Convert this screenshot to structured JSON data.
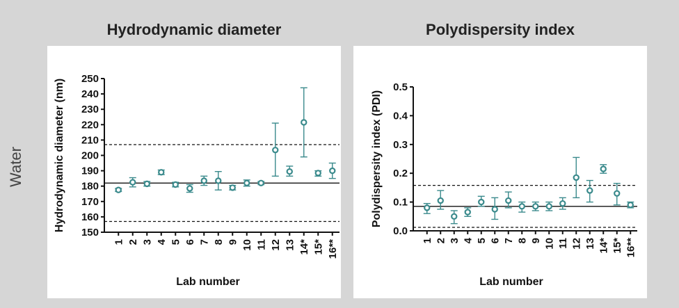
{
  "row_label": "Water",
  "chart_data": [
    {
      "type": "scatter",
      "title": "Hydrodynamic diameter",
      "xlabel": "Lab number",
      "ylabel": "Hydrodynamic diameter (nm)",
      "categories": [
        "1",
        "2",
        "3",
        "4",
        "5",
        "6",
        "7",
        "8",
        "9",
        "10",
        "11",
        "12",
        "13",
        "14*",
        "15*",
        "16**"
      ],
      "ylim": [
        150,
        250
      ],
      "yticks": [
        150,
        160,
        170,
        180,
        190,
        200,
        210,
        220,
        230,
        240,
        250
      ],
      "values": [
        177.5,
        182.5,
        181.5,
        189,
        181,
        178.5,
        183.5,
        183.5,
        179,
        182,
        182,
        203.5,
        189.5,
        221.5,
        188.5,
        190
      ],
      "error_low": [
        176.5,
        179.5,
        180,
        187.5,
        179.5,
        176,
        180.5,
        177.5,
        177.5,
        180,
        181,
        186.5,
        186.5,
        199,
        186.5,
        185
      ],
      "error_high": [
        178.5,
        185.5,
        183,
        190.5,
        182.5,
        181,
        186.5,
        189.5,
        180.5,
        184,
        183,
        221,
        193,
        244,
        190,
        195
      ],
      "reference_lines": [
        {
          "value": 182,
          "style": "solid"
        },
        {
          "value": 207,
          "style": "dashed"
        },
        {
          "value": 157,
          "style": "dashed"
        }
      ],
      "color": "#3a8a8c",
      "grid": false
    },
    {
      "type": "scatter",
      "title": "Polydispersity index",
      "xlabel": "Lab number",
      "ylabel": "Polydispersity index (PDI)",
      "categories": [
        "1",
        "2",
        "3",
        "4",
        "5",
        "6",
        "7",
        "8",
        "9",
        "10",
        "11",
        "12",
        "13",
        "14*",
        "15*",
        "16**"
      ],
      "ylim": [
        0,
        0.5
      ],
      "yticks": [
        0.0,
        0.1,
        0.2,
        0.3,
        0.4,
        0.5
      ],
      "ytick_labels": [
        "0.0",
        "0.1",
        "0.2",
        "0.3",
        "0.4",
        "0.5"
      ],
      "values": [
        0.08,
        0.105,
        0.05,
        0.065,
        0.1,
        0.075,
        0.105,
        0.085,
        0.085,
        0.085,
        0.095,
        0.185,
        0.14,
        0.215,
        0.13,
        0.09
      ],
      "error_low": [
        0.06,
        0.075,
        0.025,
        0.05,
        0.085,
        0.04,
        0.08,
        0.065,
        0.07,
        0.07,
        0.075,
        0.115,
        0.1,
        0.2,
        0.09,
        0.08
      ],
      "error_high": [
        0.095,
        0.14,
        0.07,
        0.08,
        0.12,
        0.115,
        0.135,
        0.1,
        0.1,
        0.1,
        0.115,
        0.255,
        0.175,
        0.23,
        0.165,
        0.1
      ],
      "reference_lines": [
        {
          "value": 0.085,
          "style": "solid"
        },
        {
          "value": 0.158,
          "style": "dashed"
        },
        {
          "value": 0.012,
          "style": "dashed"
        }
      ],
      "color": "#3a8a8c",
      "grid": false
    }
  ]
}
